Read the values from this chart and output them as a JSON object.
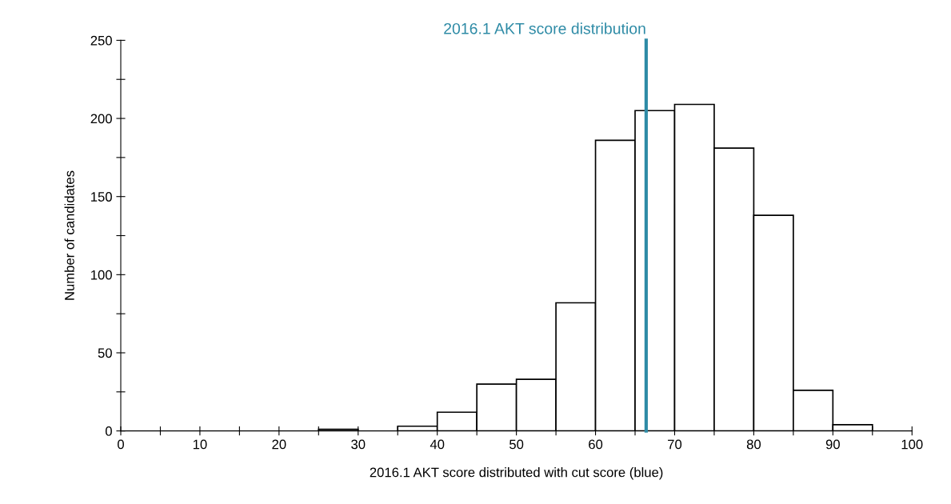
{
  "chart_data": {
    "type": "histogram",
    "xlabel": "2016.1 AKT score distributed with cut score (blue)",
    "ylabel": "Number of candidates",
    "bins": [
      0,
      5,
      10,
      15,
      20,
      25,
      30,
      35,
      40,
      45,
      50,
      55,
      60,
      65,
      70,
      75,
      80,
      85,
      90,
      95,
      100
    ],
    "values": [
      0,
      0,
      0,
      0,
      0,
      1,
      0,
      3,
      12,
      30,
      33,
      82,
      186,
      205,
      209,
      181,
      138,
      26,
      4,
      0
    ],
    "color": "#ffffff",
    "xlim": [
      0,
      100
    ],
    "xticks": [
      0,
      {
        "value": 5,
        "label": null
      },
      10,
      {
        "value": 15,
        "label": null
      },
      20,
      {
        "value": 25,
        "label": null
      },
      30,
      {
        "value": 35,
        "label": null
      },
      40,
      {
        "value": 45,
        "label": null
      },
      50,
      {
        "value": 55,
        "label": null
      },
      60,
      {
        "value": 65,
        "label": null
      },
      70,
      {
        "value": 75,
        "label": null
      },
      80,
      {
        "value": 85,
        "label": null
      },
      90,
      {
        "value": 95,
        "label": null
      },
      100
    ],
    "ylim": [
      0,
      250
    ],
    "yticks": [
      0,
      {
        "value": 25,
        "label": null
      },
      50,
      {
        "value": 75,
        "label": null
      },
      100,
      {
        "value": 125,
        "label": null
      },
      150,
      {
        "value": 175,
        "label": null
      },
      200,
      {
        "value": 225,
        "label": null
      },
      250
    ],
    "ref_lines": [
      {
        "axis": "x",
        "value": 66.4,
        "label": "2016.1 AKT score distribution",
        "color": "#2e8ba6"
      }
    ],
    "grid": false
  }
}
